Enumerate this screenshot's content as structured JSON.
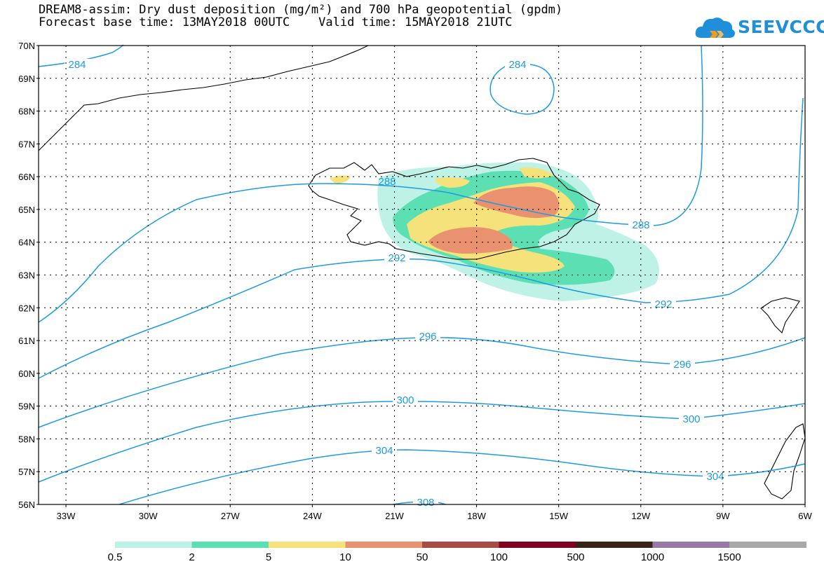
{
  "title": {
    "line1": "DREAM8-assim: Dry dust deposition (mg/m²) and 700 hPa geopotential (gpdm)",
    "line2": "Forecast base time: 13MAY2018 00UTC    Valid time: 15MAY2018 21UTC"
  },
  "logo": {
    "text": "SEEVCCC",
    "icon": "cloud-chevron-icon",
    "color": "#1e8fd8"
  },
  "map": {
    "lat_range": [
      56,
      70
    ],
    "lon_range": [
      -34,
      -6
    ],
    "lat_labels": [
      "70N",
      "69N",
      "68N",
      "67N",
      "66N",
      "65N",
      "64N",
      "63N",
      "62N",
      "61N",
      "60N",
      "59N",
      "58N",
      "57N",
      "56N"
    ],
    "lon_labels": [
      "33W",
      "30W",
      "27W",
      "24W",
      "21W",
      "18W",
      "15W",
      "12W",
      "9W",
      "6W"
    ],
    "gridlines": "dotted",
    "contour_color": "#1e9be0",
    "contour_labels": [
      "284",
      "284",
      "288",
      "288",
      "292",
      "292",
      "296",
      "296",
      "300",
      "300",
      "304",
      "304",
      "308"
    ]
  },
  "legend": {
    "colors": [
      "#bff2e7",
      "#5ddfb4",
      "#f6e27a",
      "#ea9170",
      "#a84a45",
      "#800022",
      "#3a2418",
      "#9a7aa4",
      "#a8a8a8"
    ],
    "labels": [
      "0.5",
      "2",
      "5",
      "10",
      "50",
      "100",
      "500",
      "1000",
      "1500"
    ]
  }
}
